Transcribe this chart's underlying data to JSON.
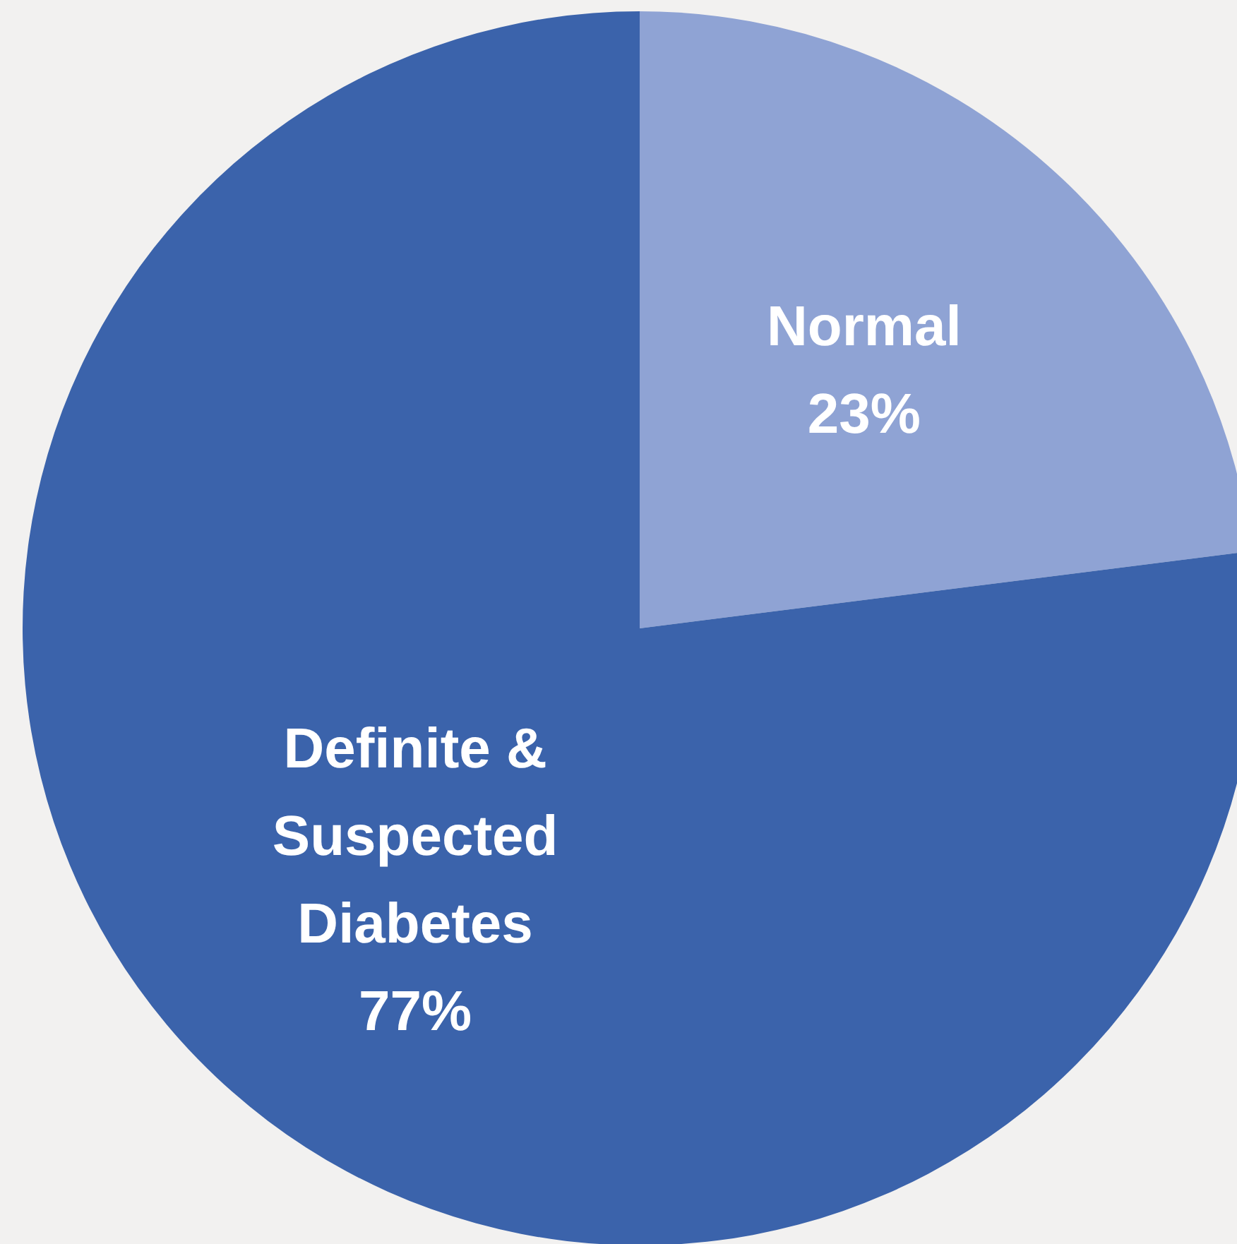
{
  "chart_data": {
    "type": "pie",
    "categories": [
      "Normal",
      "Definite & Suspected Diabetes"
    ],
    "values": [
      23,
      77
    ],
    "colors": [
      "#8fa3d4",
      "#3b63ab"
    ],
    "value_labels": [
      "23%",
      "77%"
    ],
    "legend": false
  }
}
